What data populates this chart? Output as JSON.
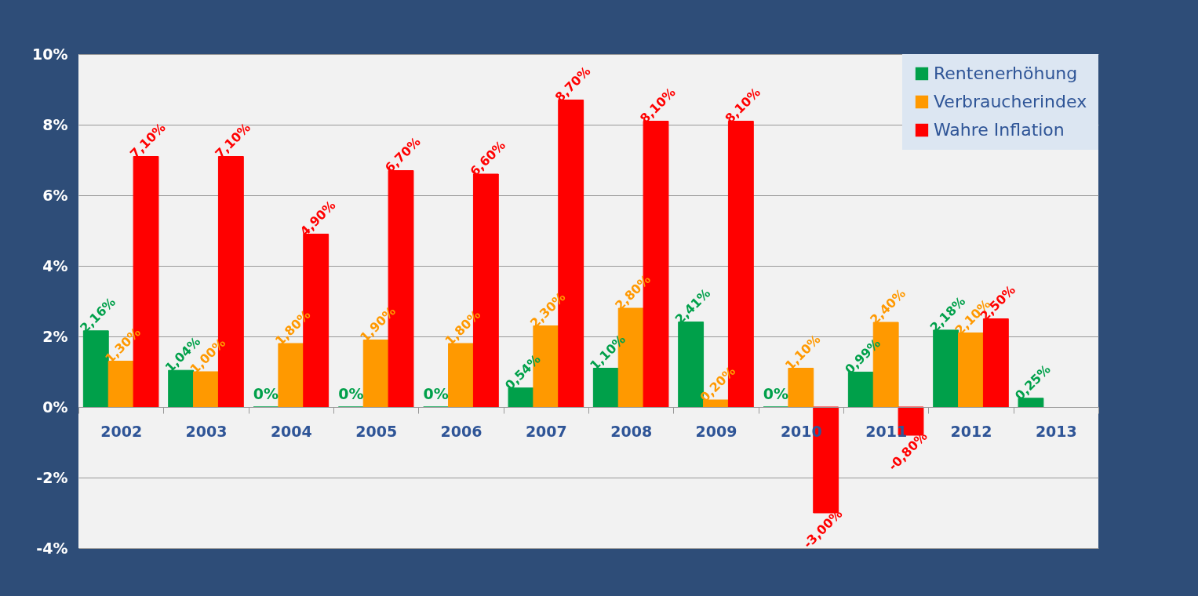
{
  "chart_data": {
    "type": "bar",
    "categories": [
      "2002",
      "2003",
      "2004",
      "2005",
      "2006",
      "2007",
      "2008",
      "2009",
      "2010",
      "2011",
      "2012",
      "2013"
    ],
    "series": [
      {
        "name": "Rentenerhöhung",
        "color": "#00a04a",
        "values": [
          2.16,
          1.04,
          0,
          0,
          0,
          0.54,
          1.1,
          2.41,
          0,
          0.99,
          2.18,
          0.25
        ],
        "value_labels": [
          "2,16%",
          "1,04%",
          "0%",
          "0%",
          "0%",
          "0,54%",
          "1,10%",
          "2,41%",
          "0%",
          "0,99%",
          "2,18%",
          "0,25%"
        ]
      },
      {
        "name": "Verbraucherindex",
        "color": "#ff9900",
        "values": [
          1.3,
          1.0,
          1.8,
          1.9,
          1.8,
          2.3,
          2.8,
          0.2,
          1.1,
          2.4,
          2.1,
          null
        ],
        "value_labels": [
          "1,30%",
          "1,00%",
          "1,80%",
          "1,90%",
          "1,80%",
          "2,30%",
          "2,80%",
          "0,20%",
          "1,10%",
          "2,40%",
          "2,10%",
          null
        ]
      },
      {
        "name": "Wahre Inflation",
        "color": "#ff0000",
        "values": [
          7.1,
          7.1,
          4.9,
          6.7,
          6.6,
          8.7,
          8.1,
          8.1,
          -3.0,
          -0.8,
          2.5,
          null
        ],
        "value_labels": [
          "7,10%",
          "7,10%",
          "4,90%",
          "6,70%",
          "6,60%",
          "8,70%",
          "8,10%",
          "8,10%",
          "-3,00%",
          "-0,80%",
          "2,50%",
          null
        ]
      }
    ],
    "ylim": [
      -4,
      10
    ],
    "yticks": [
      {
        "value": -4,
        "label": "-4%"
      },
      {
        "value": -2,
        "label": "-2%"
      },
      {
        "value": 0,
        "label": "0%"
      },
      {
        "value": 2,
        "label": "2%"
      },
      {
        "value": 4,
        "label": "4%"
      },
      {
        "value": 6,
        "label": "6%"
      },
      {
        "value": 8,
        "label": "8%"
      },
      {
        "value": 10,
        "label": "10%"
      }
    ],
    "grid": "y",
    "legend": "top right"
  }
}
